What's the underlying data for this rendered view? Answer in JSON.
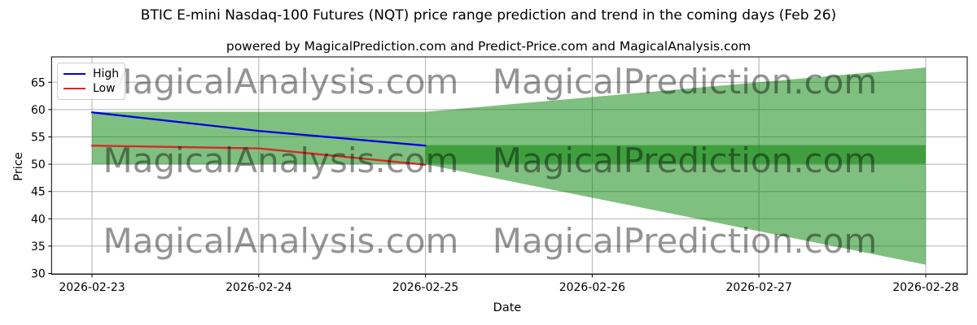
{
  "header": {
    "title": "BTIC E-mini Nasdaq-100 Futures (NQT) price range prediction and trend in the coming days (Feb 26)",
    "subtitle": "powered by MagicalPrediction.com and Predict-Price.com and MagicalAnalysis.com"
  },
  "watermark": {
    "left_text": "MagicalAnalysis.com",
    "right_text": "MagicalPrediction.com",
    "color": "#bebebe"
  },
  "legend": {
    "items": [
      {
        "label": "High",
        "color": "#0000dd"
      },
      {
        "label": "Low",
        "color": "#d62728"
      }
    ]
  },
  "chart_data": {
    "type": "area",
    "title": "BTIC E-mini Nasdaq-100 Futures (NQT) price range prediction and trend in the coming days (Feb 26)",
    "subtitle": "powered by MagicalPrediction.com and Predict-Price.com and MagicalAnalysis.com",
    "xlabel": "Date",
    "ylabel": "Price",
    "x_dates": [
      "2026-02-23",
      "2026-02-24",
      "2026-02-25",
      "2026-02-26",
      "2026-02-27",
      "2026-02-28"
    ],
    "yticks": [
      30,
      35,
      40,
      45,
      50,
      55,
      60,
      65
    ],
    "ylim": [
      29.8,
      69.7
    ],
    "grid": true,
    "grid_color": "#b0b0b0",
    "legend_position": "upper left",
    "series": [
      {
        "name": "High",
        "color": "#0000dd",
        "dates": [
          "2026-02-23",
          "2026-02-24",
          "2026-02-25"
        ],
        "values": [
          59.5,
          56.1,
          53.4
        ]
      },
      {
        "name": "Low",
        "color": "#d62728",
        "dates": [
          "2026-02-23",
          "2026-02-24",
          "2026-02-25"
        ],
        "values": [
          53.4,
          52.9,
          49.9
        ]
      }
    ],
    "bands": [
      {
        "name": "prediction-range-fan",
        "color": "#008000",
        "opacity": 0.5,
        "dates": [
          "2026-02-23",
          "2026-02-25",
          "2026-02-28"
        ],
        "top": [
          59.6,
          59.6,
          67.7
        ],
        "bottom": [
          50.0,
          50.0,
          31.6
        ]
      },
      {
        "name": "core-predicted-range",
        "color": "#008000",
        "opacity": 0.5,
        "dates": [
          "2026-02-25",
          "2026-02-28"
        ],
        "top": [
          53.5,
          53.5
        ],
        "bottom": [
          50.1,
          50.1
        ]
      }
    ]
  }
}
